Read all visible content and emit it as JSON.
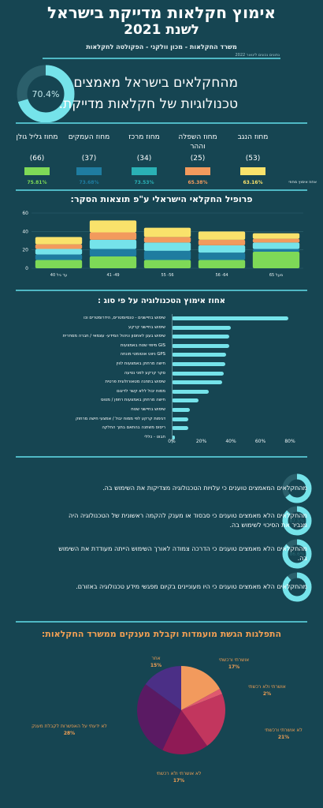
{
  "header": {
    "title_line1": "אימוץ חקלאות מדייקת בישראל",
    "title_line2": "לשנת 2021",
    "subtitle": "משרד החקלאות - מכון וולקני - הפקולטה לחקלאות",
    "pub_date": "נתונים נכונים לינואר 2022"
  },
  "hero": {
    "percent_label": "70.4%",
    "percent": 70.4,
    "text": "מהחקלאים בישראל מאמצים טכנולוגיות של חקלאות מדייקת."
  },
  "regions": {
    "adoption_label": "אחוז אימוץ מחוזי",
    "items": [
      {
        "name": "מחוז הנגב",
        "count": "(53)",
        "color": "#f9e26b",
        "pct": "63.16%"
      },
      {
        "name": "מחוז השפלה וההר",
        "count": "(25)",
        "color": "#f29a5d",
        "pct": "65.38%"
      },
      {
        "name": "מחוז מרכז",
        "count": "(34)",
        "color": "#2ab1b5",
        "pct": "73.53%"
      },
      {
        "name": "מחוז העמקים",
        "count": "(37)",
        "color": "#1f7ca0",
        "pct": "73.68%"
      },
      {
        "name": "מחוז גליל גולן",
        "count": "(66)",
        "color": "#7ed957",
        "pct": "75.81%"
      }
    ]
  },
  "chart_data": [
    {
      "type": "bar",
      "title": "פרופיל החקלאי הישראלי ע\"פ תוצאות הסקר:",
      "categories": [
        "מעל 65",
        "56 -64",
        "55 -56",
        "41 -49",
        "עד גיל 40"
      ],
      "ylim": [
        0,
        60
      ],
      "yticks": [
        0,
        20,
        40,
        60
      ],
      "stacked": true,
      "series_colors": [
        "#7ed957",
        "#1f7ca0",
        "#75e3ea",
        "#f29a5d",
        "#f9e26b"
      ],
      "series": [
        {
          "values": [
            18,
            9,
            9,
            13,
            9
          ]
        },
        {
          "values": [
            3,
            8,
            10,
            8,
            6
          ]
        },
        {
          "values": [
            7,
            8,
            9,
            10,
            6
          ]
        },
        {
          "values": [
            4,
            6,
            6,
            8,
            5
          ]
        },
        {
          "values": [
            6,
            9,
            10,
            13,
            8
          ]
        }
      ]
    },
    {
      "type": "bar",
      "orientation": "horizontal",
      "title": "אחוז אימוץ הטכנולוגיה על פי סוג :",
      "xlim": [
        0,
        80
      ],
      "xticks": [
        "0%",
        "20%",
        "40%",
        "60%",
        "80%"
      ],
      "categories": [
        "שימוש בחיישנים - טנסיומטרים, הידרומטרים וכו",
        "שימוש בחיישני קרקע",
        "שימוש בענן לאחסון וניהול המידע- עצמאי / חברה מסחרית",
        "GIS מיפוי שטח באמצעות",
        "GPS ניווט אוטומטי מונחה",
        "חישה מרחוק באמצעות לווין",
        "סקר קרקע לפני נטיעה",
        "שימוש בתחנה מטאורולוגית פרטית",
        "ממוח יבול ללא קשר לדיגום",
        "חישה מרחוק באמצעות רחפן / מטוס",
        "שימוש בחיישני שטח",
        "דגימות קרקע לפי ממוח יבול / אמצעי חישה מרחוק",
        "ריסוס משתנה בהתאם בתוך החלקה",
        "חבוט - כללי"
      ],
      "values": [
        79,
        40,
        39,
        39,
        37,
        36,
        35,
        34,
        25,
        18,
        12,
        11,
        11,
        2
      ]
    },
    {
      "type": "pie",
      "title": "התפלגות הגשת מועמדות וקבלת מענקים ממשרד החקלאות:",
      "slices": [
        {
          "label": "אושרתי ורכשתי",
          "pct": "17%",
          "value": 17,
          "color": "#f29a5d"
        },
        {
          "label": "אושרתי ולא רכשתי",
          "pct": "2%",
          "value": 2,
          "color": "#e0596e"
        },
        {
          "label": "לא אושרתי ורכשתי",
          "pct": "21%",
          "value": 21,
          "color": "#c2365e"
        },
        {
          "label": "לא אושרתי ולא רכשתי",
          "pct": "17%",
          "value": 17,
          "color": "#8f1a55"
        },
        {
          "label": "לא ידעתי על האפשרות לקבלת מענק",
          "pct": "28%",
          "value": 28,
          "color": "#5a1a63"
        },
        {
          "label": "אחר",
          "pct": "15%",
          "value": 15,
          "color": "#4b2f86"
        }
      ]
    }
  ],
  "statements": [
    {
      "pct_label": "64.4%",
      "pct": 64.4,
      "text": "מהחקלאים המאמצים טוענים כי עלויות הטכנולוגיה מצדיקות את השימוש בה."
    },
    {
      "pct_label": "87.5%",
      "pct": 87.5,
      "text": "מהחקלאים הלא מאמצים טוענים כי סבסוד או מענק להקמה ראשונית של הטכנולוגיה היה מגביר את הסיכוי לשימוש בה."
    },
    {
      "pct_label": "86.6%",
      "pct": 86.6,
      "text": "מהחקלאים הלא מאמצים טוענים כי הדרכה צמודה לאורך השימוש הייתה מעודדת את השימוש בה."
    },
    {
      "pct_label": "88.5%",
      "pct": 88.5,
      "text": "מהחקלאים הלא מאמצים טוענים כי היו מעוניינים בקיום מפגשי מידע טכנולוגיה באזורם."
    }
  ]
}
